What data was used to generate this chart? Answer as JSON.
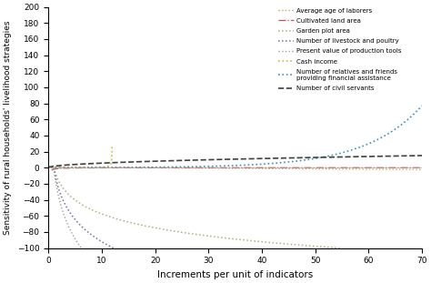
{
  "title": "",
  "xlabel": "Increments per unit of indicators",
  "ylabel": "Sensitivity of rural households' livelihood strategies",
  "xlim": [
    0,
    70
  ],
  "ylim": [
    -100,
    200
  ],
  "yticks": [
    -100,
    -80,
    -60,
    -40,
    -20,
    0,
    20,
    40,
    60,
    80,
    100,
    120,
    140,
    160,
    180,
    200
  ],
  "xticks": [
    0,
    10,
    20,
    30,
    40,
    50,
    60,
    70
  ],
  "background_color": "#ffffff",
  "figsize": [
    4.74,
    3.11
  ],
  "dpi": 100,
  "series": [
    {
      "label": "Average age of laborers",
      "color": "#d4a060",
      "linestyle": "dotted",
      "linewidth": 1.0,
      "type": "linear",
      "slope": -0.04,
      "intercept": 0.5,
      "xstart": 0.5
    },
    {
      "label": "Cultivated land area",
      "color": "#c85050",
      "linestyle": "dashdot",
      "linewidth": 0.9,
      "type": "neg_hyperbola",
      "a": -2.0,
      "x0": 0.5,
      "xstart": 0.6
    },
    {
      "label": "Garden plot area",
      "color": "#a0b878",
      "linestyle": "dotted",
      "linewidth": 1.1,
      "type": "neg_log",
      "scale": -25.0,
      "x0": 1.0,
      "xstart": 1.0
    },
    {
      "label": "Number of livestock and poultry",
      "color": "#7070a0",
      "linestyle": "dotted",
      "linewidth": 1.1,
      "type": "neg_log",
      "scale": -40.0,
      "x0": 1.0,
      "xstart": 1.0
    },
    {
      "label": "Present value of production tools",
      "color": "#a0a090",
      "linestyle": "dotted",
      "linewidth": 1.0,
      "type": "neg_log",
      "scale": -55.0,
      "x0": 1.0,
      "xstart": 1.0
    },
    {
      "label": "Cash income",
      "color": "#d4b840",
      "linestyle": "dotted",
      "linewidth": 1.2,
      "type": "pos_hyperbola",
      "a": 1.5,
      "x0": 12.0,
      "xstart": 0.5
    },
    {
      "label": "Number of relatives and friends\nproviding financial assistance",
      "color": "#4090b8",
      "linestyle": "dotted",
      "linewidth": 1.2,
      "type": "exponential",
      "a": 0.0005,
      "b": 0.095,
      "xstart": 0.5
    },
    {
      "label": "Number of civil servants",
      "color": "#404040",
      "linestyle": "dashed",
      "linewidth": 1.2,
      "type": "sqrt_grow",
      "scale": 1.8,
      "xstart": 0.0
    }
  ]
}
